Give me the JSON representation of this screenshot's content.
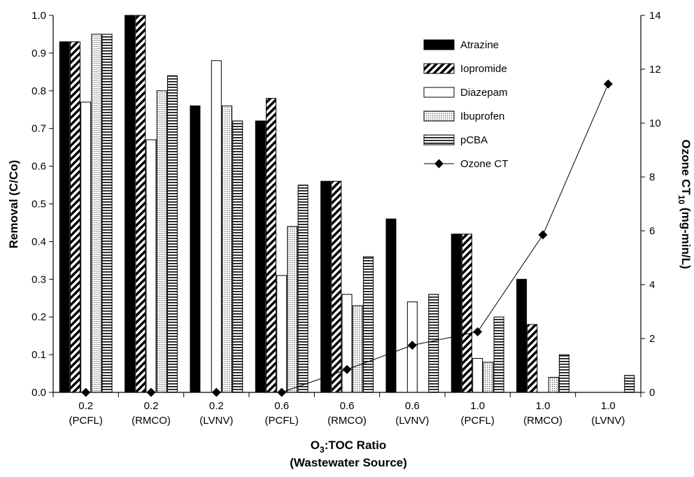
{
  "chart_data": {
    "type": "bar",
    "categories": [
      {
        "ratio": "0.2",
        "source": "(PCFL)"
      },
      {
        "ratio": "0.2",
        "source": "(RMCO)"
      },
      {
        "ratio": "0.2",
        "source": "(LVNV)"
      },
      {
        "ratio": "0.6",
        "source": "(PCFL)"
      },
      {
        "ratio": "0.6",
        "source": "(RMCO)"
      },
      {
        "ratio": "0.6",
        "source": "(LVNV)"
      },
      {
        "ratio": "1.0",
        "source": "(PCFL)"
      },
      {
        "ratio": "1.0",
        "source": "(RMCO)"
      },
      {
        "ratio": "1.0",
        "source": "(LVNV)"
      }
    ],
    "series": [
      {
        "name": "Atrazine",
        "pattern": "solid",
        "values": [
          0.93,
          1.0,
          0.76,
          0.72,
          0.56,
          0.46,
          0.42,
          0.3,
          0.0
        ]
      },
      {
        "name": "Iopromide",
        "pattern": "diagonal",
        "values": [
          0.93,
          1.0,
          0.0,
          0.78,
          0.56,
          0.0,
          0.42,
          0.18,
          0.0
        ]
      },
      {
        "name": "Diazepam",
        "pattern": "empty",
        "values": [
          0.77,
          0.67,
          0.88,
          0.31,
          0.26,
          0.24,
          0.09,
          0.0,
          0.0
        ]
      },
      {
        "name": "Ibuprofen",
        "pattern": "dots",
        "values": [
          0.95,
          0.8,
          0.76,
          0.44,
          0.23,
          0.0,
          0.08,
          0.04,
          0.0
        ]
      },
      {
        "name": "pCBA",
        "pattern": "horizontal",
        "values": [
          0.95,
          0.84,
          0.72,
          0.55,
          0.36,
          0.26,
          0.2,
          0.1,
          0.045
        ]
      }
    ],
    "line_series": {
      "name": "Ozone CT",
      "values": [
        0.0,
        0.0,
        0.0,
        0.0,
        0.85,
        1.75,
        2.25,
        5.85,
        11.45
      ]
    },
    "xlabel": {
      "main": "O",
      "sub": "3",
      "rest": ":TOC Ratio",
      "line2": "(Wastewater Source)"
    },
    "ylabel_left": "Removal (C/Co)",
    "ylabel_right": {
      "main": "Ozone CT",
      "sub": "10",
      "rest": " (mg-min/L)"
    },
    "ylim_left": [
      0,
      1
    ],
    "ylim_right": [
      0,
      14
    ],
    "left_ticks": [
      "0.0",
      "0.1",
      "0.2",
      "0.3",
      "0.4",
      "0.5",
      "0.6",
      "0.7",
      "0.8",
      "0.9",
      "1.0"
    ],
    "right_ticks": [
      "0",
      "2",
      "4",
      "6",
      "8",
      "10",
      "12",
      "14"
    ],
    "legend_position": "top-right",
    "grid": false
  }
}
